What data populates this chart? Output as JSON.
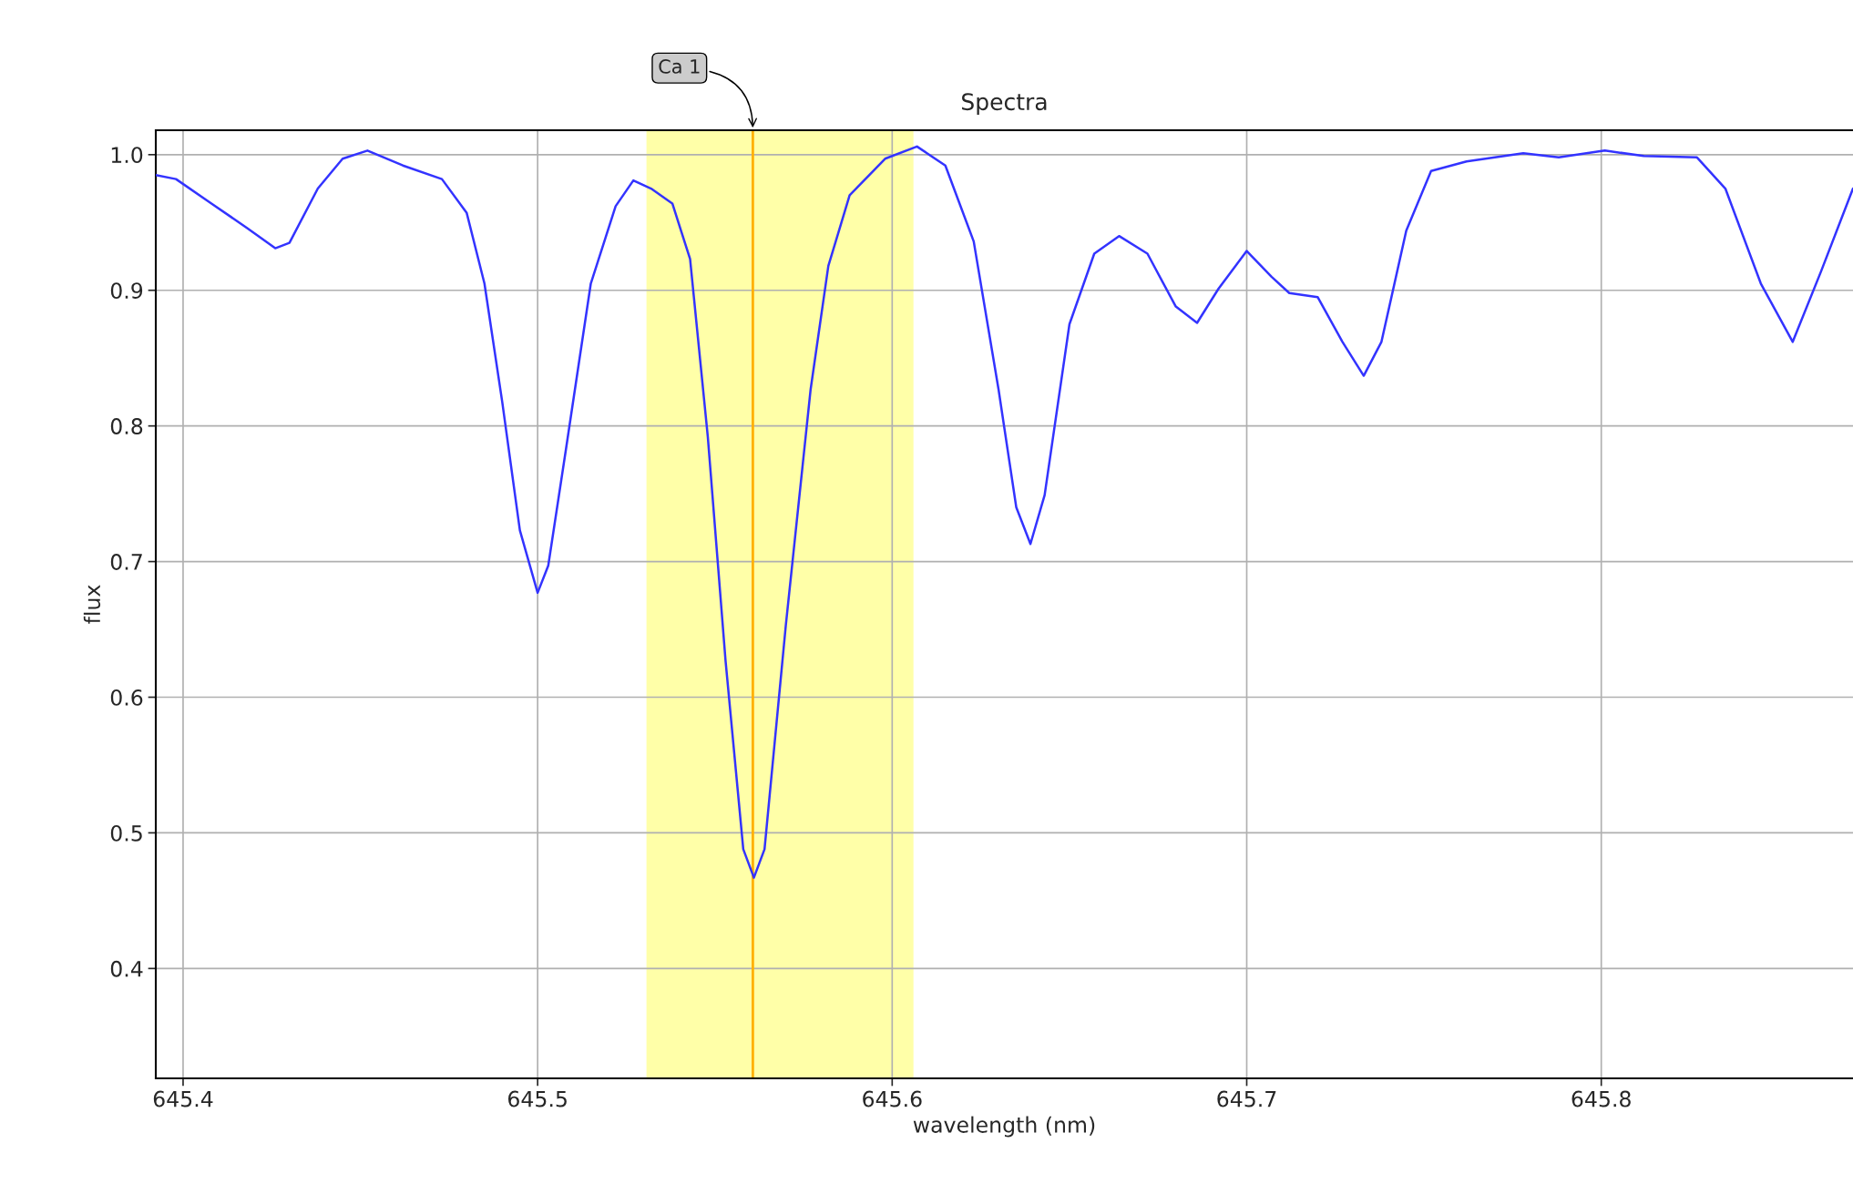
{
  "chart_data": {
    "type": "line",
    "title": "Spectra",
    "xlabel": "wavelength (nm)",
    "ylabel": "flux",
    "x": [
      645.3923,
      645.398,
      645.408,
      645.418,
      645.426,
      645.43,
      645.438,
      645.445,
      645.452,
      645.462,
      645.473,
      645.48,
      645.485,
      645.49,
      645.495,
      645.5,
      645.503,
      645.508,
      645.515,
      645.522,
      645.527,
      645.532,
      645.538,
      645.543,
      645.548,
      645.553,
      645.558,
      645.561,
      645.564,
      645.57,
      645.577,
      645.582,
      645.588,
      645.598,
      645.607,
      645.615,
      645.623,
      645.63,
      645.635,
      645.639,
      645.643,
      645.65,
      645.657,
      645.664,
      645.672,
      645.68,
      645.686,
      645.692,
      645.7,
      645.707,
      645.712,
      645.72,
      645.727,
      645.733,
      645.738,
      645.745,
      645.752,
      645.762,
      645.778,
      645.788,
      645.801,
      645.812,
      645.827,
      645.835,
      645.845,
      645.854,
      645.862,
      645.871
    ],
    "series": [
      {
        "color": "#3333ff",
        "values": [
          0.985,
          0.982,
          0.964,
          0.946,
          0.931,
          0.935,
          0.975,
          0.997,
          1.003,
          0.992,
          0.982,
          0.957,
          0.905,
          0.818,
          0.723,
          0.677,
          0.697,
          0.783,
          0.905,
          0.962,
          0.981,
          0.975,
          0.964,
          0.923,
          0.792,
          0.627,
          0.488,
          0.467,
          0.488,
          0.653,
          0.827,
          0.918,
          0.97,
          0.997,
          1.006,
          0.992,
          0.936,
          0.827,
          0.74,
          0.713,
          0.749,
          0.875,
          0.927,
          0.94,
          0.927,
          0.888,
          0.876,
          0.901,
          0.929,
          0.91,
          0.898,
          0.895,
          0.862,
          0.837,
          0.862,
          0.944,
          0.988,
          0.995,
          1.001,
          0.998,
          1.003,
          0.999,
          0.998,
          0.975,
          0.905,
          0.862,
          0.914,
          0.975
        ]
      }
    ],
    "xlim": [
      645.3923,
      645.871
    ],
    "ylim": [
      0.319,
      1.018
    ],
    "xticks": [
      645.4,
      645.5,
      645.6,
      645.7,
      645.8
    ],
    "yticks": [
      0.4,
      0.5,
      0.6,
      0.7,
      0.8,
      0.9,
      {
        "value": 1,
        "label": "1.0"
      }
    ],
    "grid": true,
    "marker": "none",
    "line_style": "solid",
    "ref_lines": [
      {
        "axis": "x",
        "value": 645.5607,
        "label": "Ca 1",
        "color": "#ffb000"
      }
    ],
    "bands": [
      {
        "axis": "x",
        "from": 645.5307,
        "to": 645.606,
        "color": "#ffffa8"
      }
    ]
  }
}
